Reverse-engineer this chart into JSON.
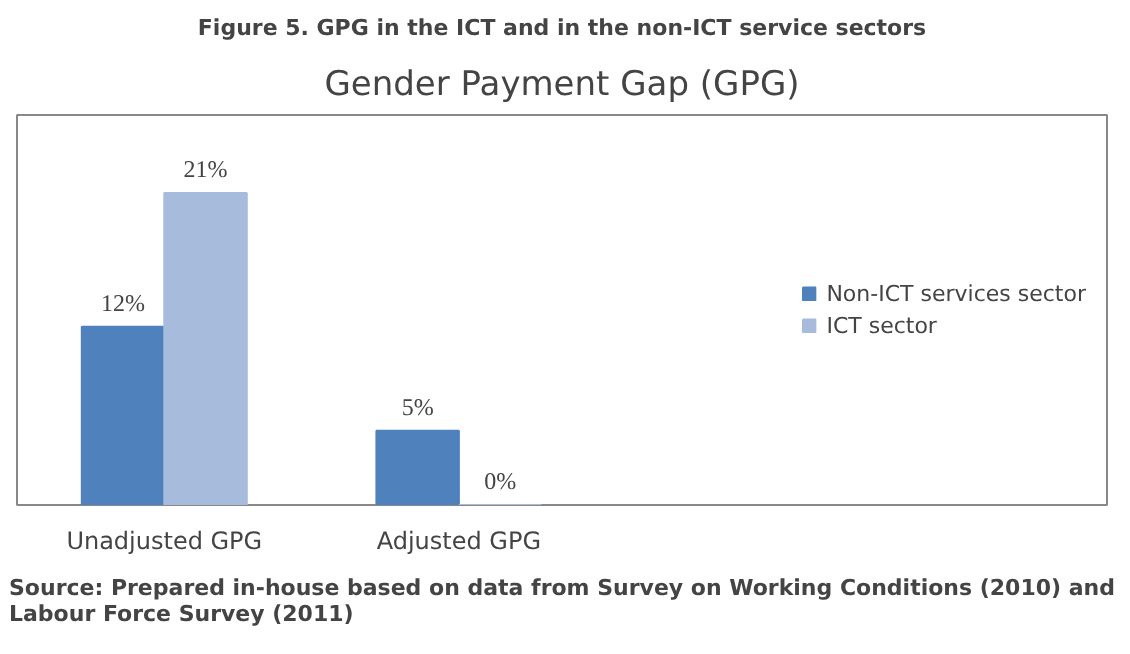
{
  "chart_data": {
    "type": "bar",
    "title": "Gender Payment Gap (GPG)",
    "subtitle": "Figure 5. GPG in the ICT and in the non-ICT service sectors",
    "categories": [
      "Unadjusted GPG",
      "Adjusted GPG"
    ],
    "series": [
      {
        "name": "Non-ICT services sector",
        "color": "#4f81bd",
        "values": [
          12,
          5
        ],
        "value_labels": [
          "12%",
          "5%"
        ]
      },
      {
        "name": "ICT sector",
        "color": "#a7bcdc",
        "values": [
          21,
          0
        ],
        "value_labels": [
          "21%",
          "0%"
        ]
      }
    ],
    "legend": "right",
    "grid": false,
    "annotations": [
      "Source: Prepared in-house based on data from Survey on Working Conditions (2010) and Labour Force Survey (2011)"
    ]
  }
}
